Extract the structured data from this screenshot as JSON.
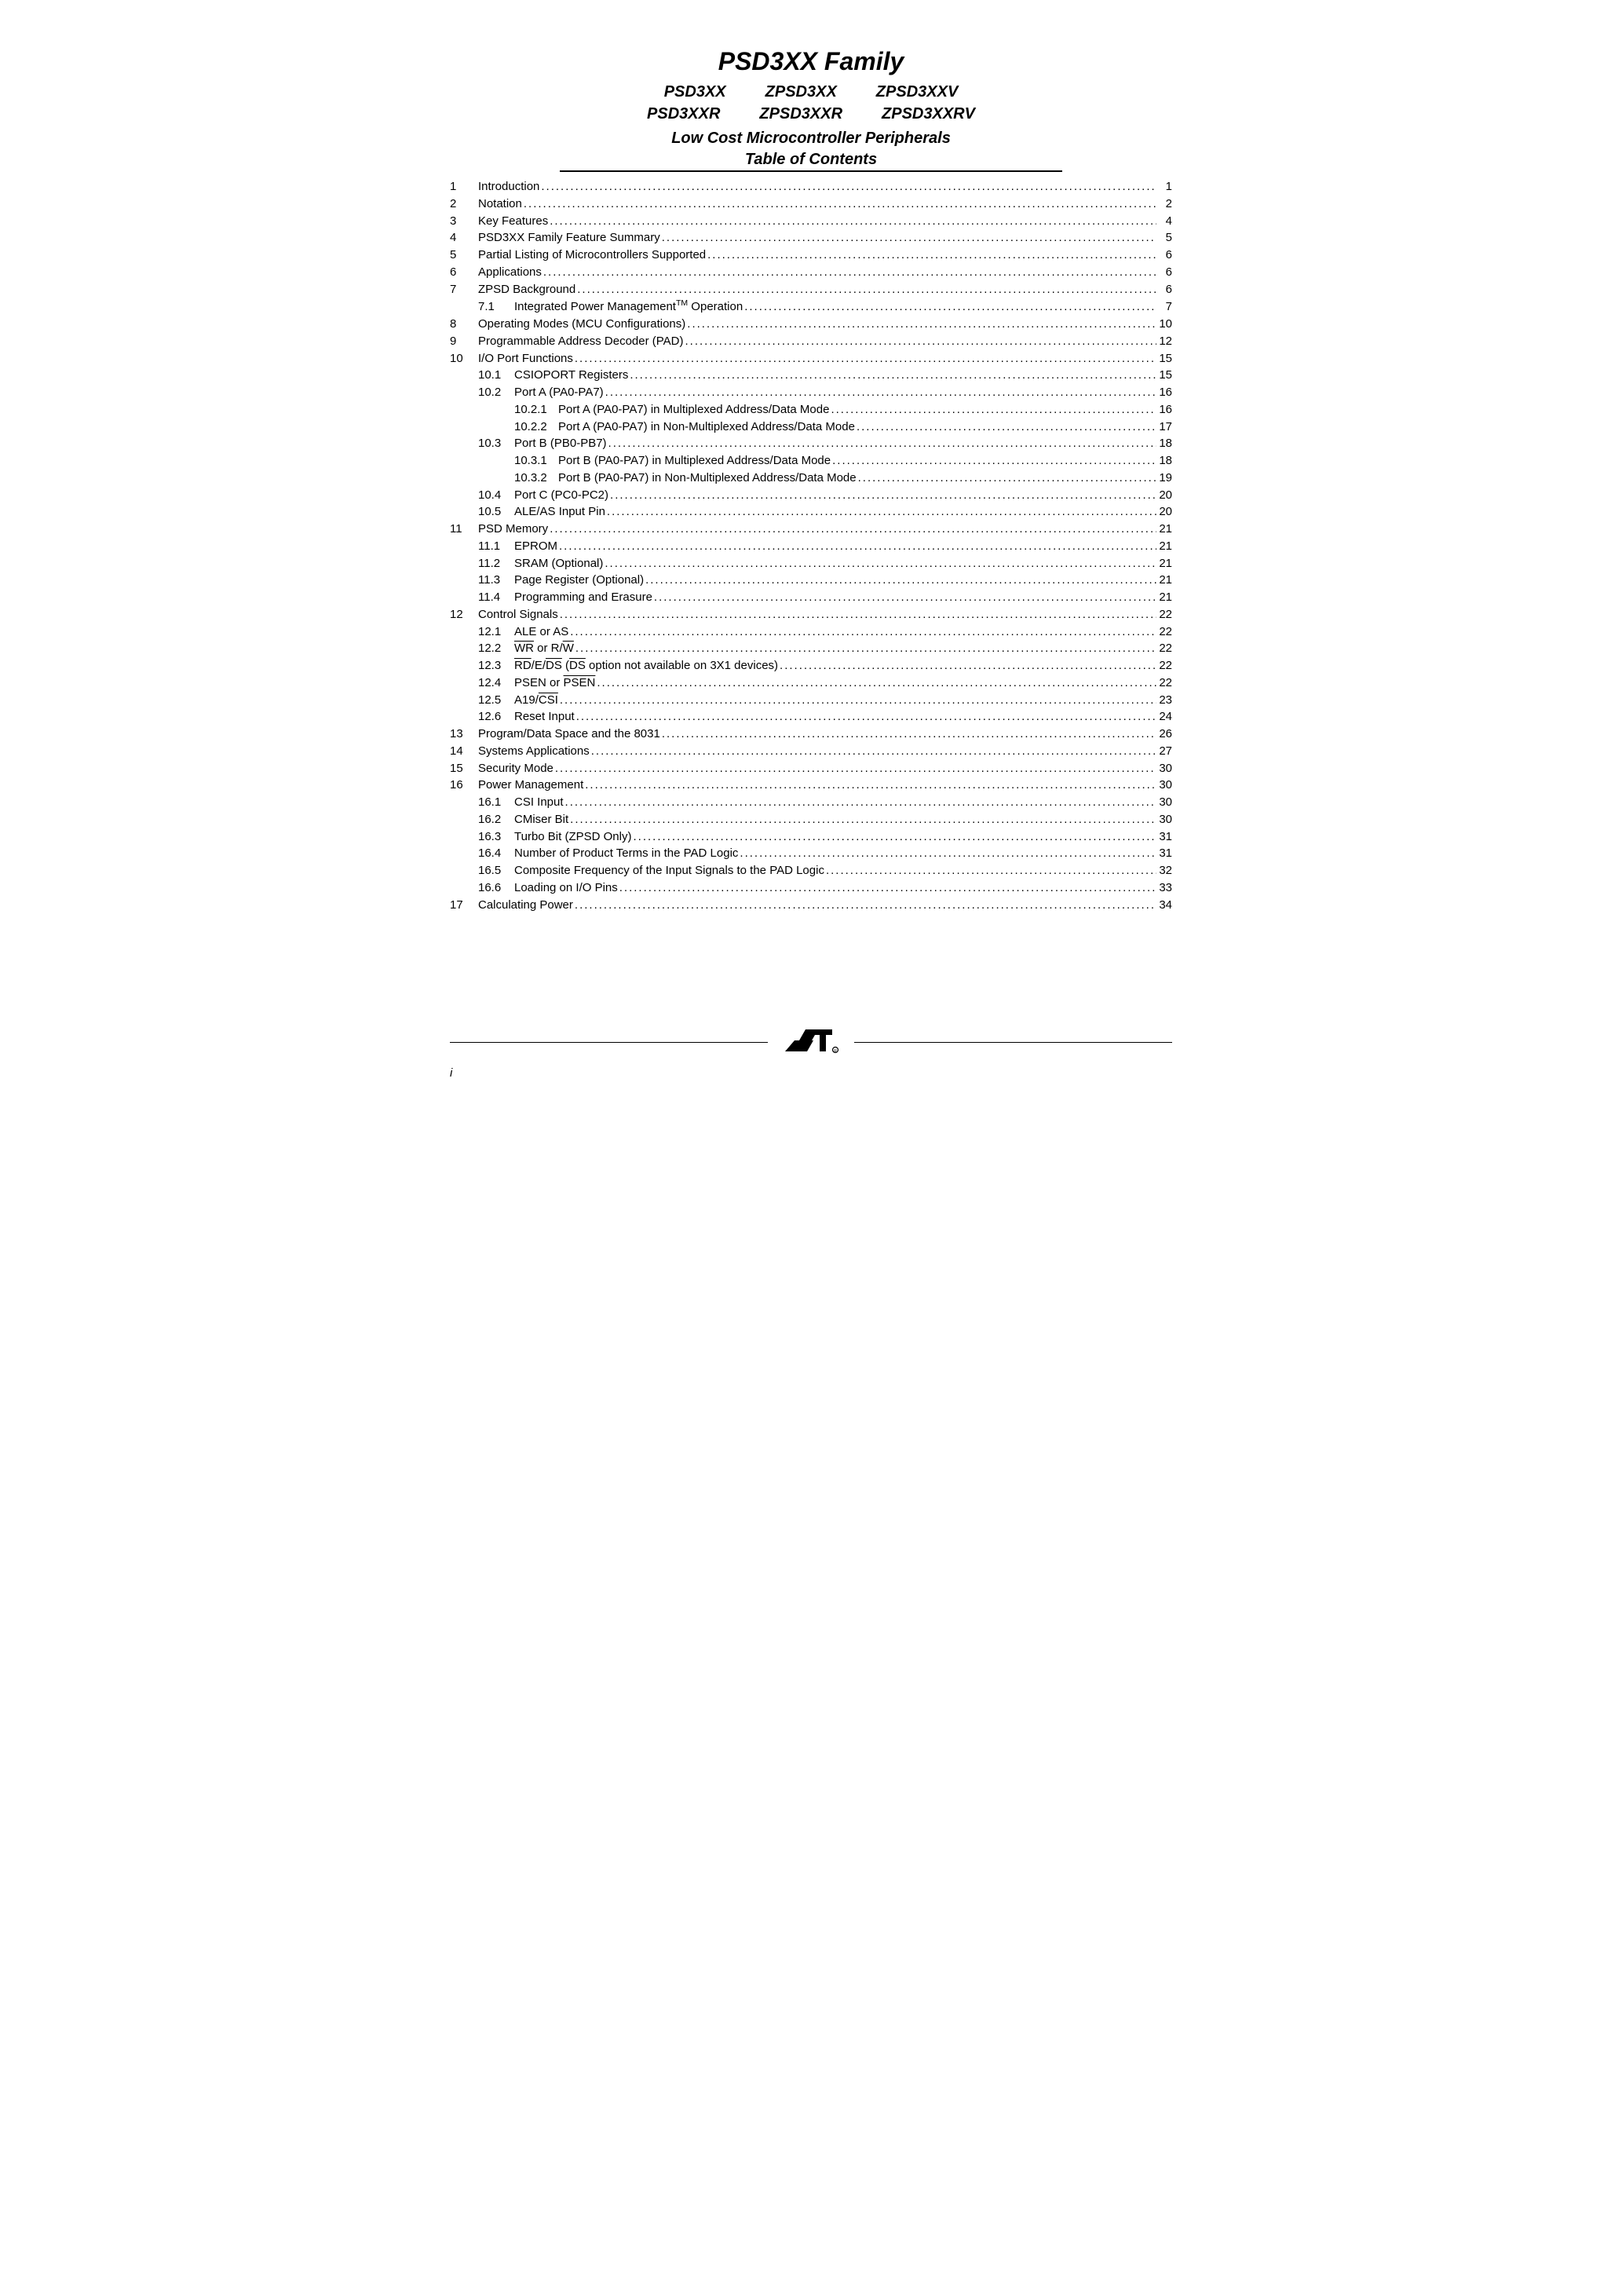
{
  "header": {
    "title": "PSD3XX Family",
    "variants_row1": [
      "PSD3XX",
      "ZPSD3XX",
      "ZPSD3XXV"
    ],
    "variants_row2": [
      "PSD3XXR",
      "ZPSD3XXR",
      "ZPSD3XXRV"
    ],
    "subtitle1": "Low Cost Microcontroller Peripherals",
    "subtitle2": "Table of Contents"
  },
  "toc": [
    {
      "n": "1",
      "t": "Introduction",
      "p": "1"
    },
    {
      "n": "2",
      "t": "Notation",
      "p": "2"
    },
    {
      "n": "3",
      "t": "Key Features",
      "p": "4"
    },
    {
      "n": "4",
      "t": "PSD3XX Family Feature Summary",
      "p": "5"
    },
    {
      "n": "5",
      "t": "Partial Listing of Microcontrollers Supported",
      "p": "6"
    },
    {
      "n": "6",
      "t": "Applications",
      "p": "6"
    },
    {
      "n": "7",
      "t": "ZPSD Background",
      "p": "6"
    },
    {
      "n": "",
      "s": "7.1",
      "html": "Integrated Power Management<sup>TM</sup> Operation",
      "p": "7"
    },
    {
      "n": "8",
      "t": "Operating Modes (MCU Configurations)",
      "p": "10"
    },
    {
      "n": "9",
      "t": "Programmable Address Decoder (PAD)",
      "p": "12"
    },
    {
      "n": "10",
      "t": "I/O Port Functions",
      "p": "15"
    },
    {
      "n": "",
      "s": "10.1",
      "t": "CSIOPORT Registers",
      "p": "15"
    },
    {
      "n": "",
      "s": "10.2",
      "t": "Port A (PA0-PA7)",
      "p": "16"
    },
    {
      "n": "",
      "ss": "10.2.1",
      "t": "Port A (PA0-PA7) in Multiplexed Address/Data Mode",
      "p": "16"
    },
    {
      "n": "",
      "ss": "10.2.2",
      "t": "Port A (PA0-PA7) in Non-Multiplexed Address/Data Mode",
      "p": "17"
    },
    {
      "n": "",
      "s": "10.3",
      "t": "Port B (PB0-PB7)",
      "p": "18"
    },
    {
      "n": "",
      "ss": "10.3.1",
      "t": "Port B (PA0-PA7) in Multiplexed Address/Data Mode",
      "p": "18"
    },
    {
      "n": "",
      "ss": "10.3.2",
      "t": "Port B (PA0-PA7) in Non-Multiplexed Address/Data Mode",
      "p": "19"
    },
    {
      "n": "",
      "s": "10.4",
      "t": "Port C (PC0-PC2)",
      "p": "20"
    },
    {
      "n": "",
      "s": "10.5",
      "t": "ALE/AS Input Pin",
      "p": "20"
    },
    {
      "n": "11",
      "t": "PSD Memory",
      "p": "21"
    },
    {
      "n": "",
      "s": "11.1",
      "t": "EPROM",
      "p": "21"
    },
    {
      "n": "",
      "s": "11.2",
      "t": "SRAM (Optional)",
      "p": "21"
    },
    {
      "n": "",
      "s": "11.3",
      "t": "Page Register (Optional)",
      "p": "21"
    },
    {
      "n": "",
      "s": "11.4",
      "t": "Programming and Erasure",
      "p": "21"
    },
    {
      "n": "12",
      "t": "Control Signals",
      "p": "22"
    },
    {
      "n": "",
      "s": "12.1",
      "t": "ALE or AS",
      "p": "22"
    },
    {
      "n": "",
      "s": "12.2",
      "html": "<span class=\"overline\">WR</span> or R/<span class=\"overline\">W</span>",
      "p": "22"
    },
    {
      "n": "",
      "s": "12.3",
      "html": "<span class=\"overline\">RD</span>/E/<span class=\"overline\">DS</span> (<span class=\"overline\">DS</span> option not available on 3X1 devices)",
      "p": "22"
    },
    {
      "n": "",
      "s": "12.4",
      "html": "PSEN or <span class=\"overline\">PSEN</span>",
      "p": "22"
    },
    {
      "n": "",
      "s": "12.5",
      "html": "A19/<span class=\"overline\">CSI</span>",
      "p": "23"
    },
    {
      "n": "",
      "s": "12.6",
      "t": "Reset Input",
      "p": "24"
    },
    {
      "n": "13",
      "t": "Program/Data Space and the 8031",
      "p": "26"
    },
    {
      "n": "14",
      "t": "Systems Applications",
      "p": "27"
    },
    {
      "n": "15",
      "t": "Security Mode",
      "p": "30"
    },
    {
      "n": "16",
      "t": "Power Management",
      "p": "30"
    },
    {
      "n": "",
      "s": "16.1",
      "t": "CSI Input",
      "p": "30"
    },
    {
      "n": "",
      "s": "16.2",
      "t": "CMiser Bit",
      "p": "30"
    },
    {
      "n": "",
      "s": "16.3",
      "t": "Turbo Bit (ZPSD Only)",
      "p": "31"
    },
    {
      "n": "",
      "s": "16.4",
      "t": "Number of Product Terms in the PAD Logic",
      "p": "31"
    },
    {
      "n": "",
      "s": "16.5",
      "t": "Composite Frequency of the Input Signals to the PAD Logic",
      "p": "32"
    },
    {
      "n": "",
      "s": "16.6",
      "t": "Loading on I/O Pins",
      "p": "33"
    },
    {
      "n": "17",
      "t": "Calculating Power",
      "p": "34"
    }
  ],
  "footer": {
    "page_number": "i"
  },
  "style": {
    "text_color": "#000000",
    "background_color": "#ffffff",
    "title_fontsize": 32,
    "variant_fontsize": 20,
    "body_fontsize": 15,
    "font_family": "Arial, Helvetica, sans-serif"
  }
}
